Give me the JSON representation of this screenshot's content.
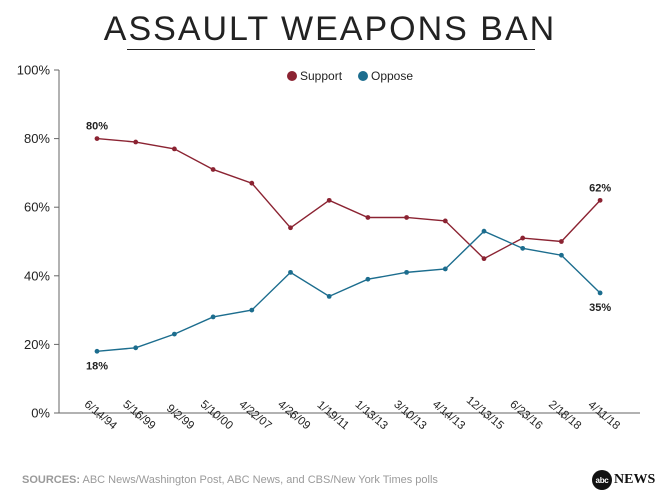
{
  "title": "ASSAULT WEAPONS BAN",
  "source": {
    "prefix": "SOURCES:",
    "text": " ABC News/Washington Post, ABC News, and CBS/New York Times polls"
  },
  "brand": {
    "circle": "abc",
    "word": "NEWS"
  },
  "colors": {
    "support": "#8b2332",
    "oppose": "#1c6d8e",
    "axis": "#666666",
    "grid": "#e6e6e6",
    "text": "#222222"
  },
  "chart_data": {
    "type": "line",
    "title": "ASSAULT WEAPONS BAN",
    "xlabel": "",
    "ylabel": "",
    "ylim": [
      0,
      100
    ],
    "yticks": [
      0,
      20,
      40,
      60,
      80,
      100
    ],
    "ytick_labels": [
      "0%",
      "20%",
      "40%",
      "60%",
      "80%",
      "100%"
    ],
    "grid": false,
    "legend_position": "top-center",
    "categories": [
      "6/14/94",
      "5/16/99",
      "9/2/99",
      "5/10/00",
      "4/22/07",
      "4/26/09",
      "1/19/11",
      "1/13/13",
      "3/10/13",
      "4/14/13",
      "12/13/15",
      "6/23/16",
      "2/18/18",
      "4/11/18"
    ],
    "series": [
      {
        "name": "Support",
        "color": "#8b2332",
        "values": [
          80,
          79,
          77,
          71,
          67,
          54,
          62,
          57,
          57,
          56,
          45,
          51,
          50,
          62
        ]
      },
      {
        "name": "Oppose",
        "color": "#1c6d8e",
        "values": [
          18,
          19,
          23,
          28,
          30,
          41,
          34,
          39,
          41,
          42,
          53,
          48,
          46,
          35
        ]
      }
    ],
    "annotations": [
      {
        "series": "Support",
        "index": 0,
        "text": "80%",
        "placement": "above"
      },
      {
        "series": "Support",
        "index": 13,
        "text": "62%",
        "placement": "above"
      },
      {
        "series": "Oppose",
        "index": 0,
        "text": "18%",
        "placement": "below"
      },
      {
        "series": "Oppose",
        "index": 13,
        "text": "35%",
        "placement": "below"
      }
    ]
  }
}
